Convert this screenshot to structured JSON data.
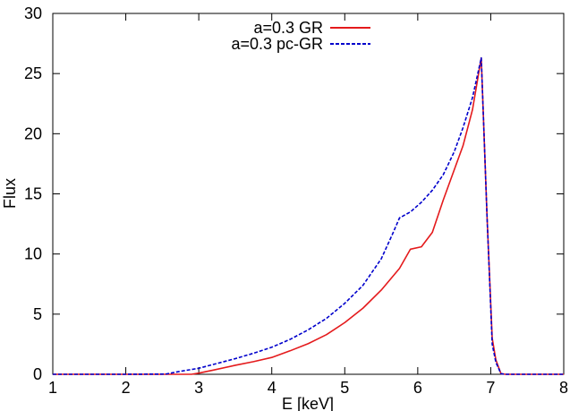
{
  "chart_data": {
    "type": "line",
    "title": "",
    "xlabel": "E [keV]",
    "ylabel": "Flux",
    "xlim": [
      1,
      8
    ],
    "ylim": [
      0,
      30
    ],
    "xticks": [
      1,
      2,
      3,
      4,
      5,
      6,
      7,
      8
    ],
    "yticks": [
      0,
      5,
      10,
      15,
      20,
      25,
      30
    ],
    "grid": false,
    "legend_position": "top-center",
    "series": [
      {
        "name": "a=0.3 GR",
        "color": "#e41a1c",
        "dash": "solid",
        "x": [
          1.0,
          2.0,
          2.9,
          3.0,
          3.2,
          3.5,
          3.75,
          4.0,
          4.25,
          4.5,
          4.75,
          5.0,
          5.25,
          5.5,
          5.75,
          5.9,
          6.05,
          6.2,
          6.35,
          6.5,
          6.62,
          6.75,
          6.87,
          6.95,
          7.02,
          7.07,
          7.14,
          7.2,
          7.5,
          8.0
        ],
        "y": [
          0,
          0,
          0,
          0.1,
          0.35,
          0.75,
          1.05,
          1.4,
          1.95,
          2.55,
          3.3,
          4.3,
          5.5,
          7.0,
          8.8,
          10.4,
          10.6,
          11.8,
          14.5,
          17.0,
          19.0,
          22.0,
          26.3,
          13.0,
          3.0,
          1.2,
          0.05,
          0,
          0,
          0
        ]
      },
      {
        "name": "a=0.3 pc-GR",
        "color": "#0000cc",
        "dash": "dashed",
        "x": [
          1.0,
          2.0,
          2.55,
          2.75,
          3.0,
          3.25,
          3.5,
          3.75,
          4.0,
          4.25,
          4.5,
          4.75,
          5.0,
          5.25,
          5.5,
          5.65,
          5.75,
          5.9,
          6.05,
          6.2,
          6.35,
          6.5,
          6.62,
          6.75,
          6.87,
          6.95,
          7.02,
          7.07,
          7.14,
          7.2,
          7.5,
          8.0
        ],
        "y": [
          0,
          0,
          0.02,
          0.25,
          0.5,
          0.9,
          1.3,
          1.75,
          2.25,
          2.9,
          3.7,
          4.65,
          5.9,
          7.4,
          9.6,
          11.6,
          13.0,
          13.5,
          14.3,
          15.3,
          16.6,
          18.5,
          20.5,
          23.0,
          26.3,
          13.0,
          2.5,
          1.0,
          0.05,
          0,
          0,
          0
        ]
      }
    ]
  }
}
